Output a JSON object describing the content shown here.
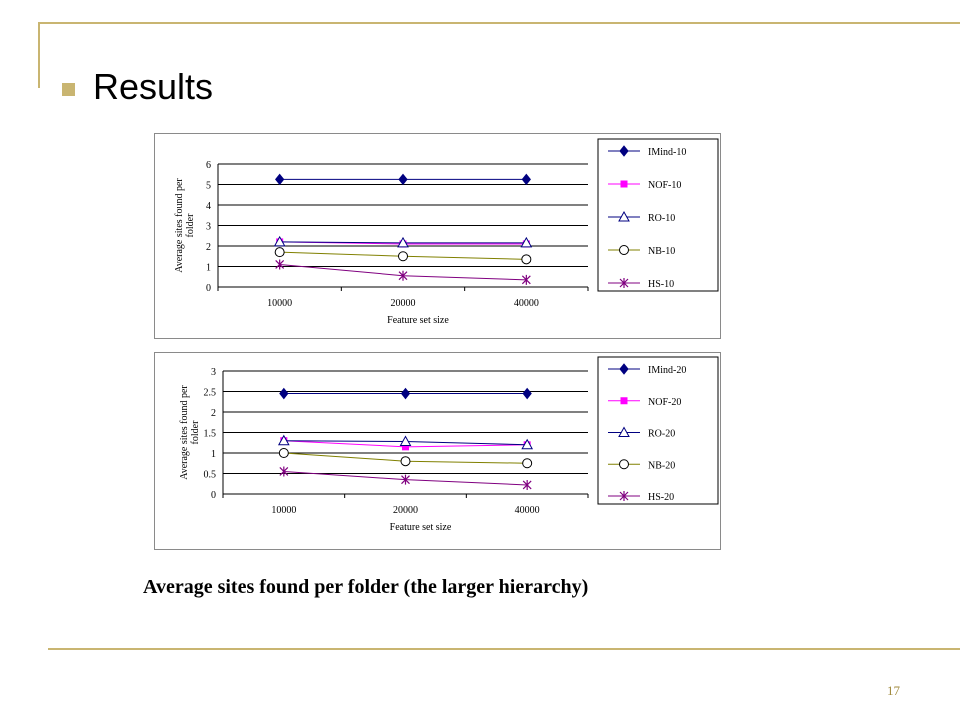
{
  "slide": {
    "title": "Results",
    "caption": "Average sites found per folder (the larger hierarchy)",
    "page_number": "17",
    "accent_color": "#c9b571"
  },
  "chart_data": [
    {
      "type": "line",
      "categories": [
        "10000",
        "20000",
        "40000"
      ],
      "xlabel": "Feature set size",
      "ylabel": "Average sites found per folder",
      "ylim": [
        0,
        6
      ],
      "yticks": [
        "0",
        "1",
        "2",
        "3",
        "4",
        "5",
        "6"
      ],
      "grid": true,
      "legend": "right",
      "series": [
        {
          "name": "IMind-10",
          "values": [
            5.25,
            5.25,
            5.25
          ],
          "color": "#000080",
          "marker": "diamond"
        },
        {
          "name": "NOF-10",
          "values": [
            2.2,
            2.1,
            2.1
          ],
          "color": "#ff00ff",
          "marker": "square"
        },
        {
          "name": "RO-10",
          "values": [
            2.2,
            2.15,
            2.15
          ],
          "color": "#000080",
          "marker": "triangle"
        },
        {
          "name": "NB-10",
          "values": [
            1.7,
            1.5,
            1.35
          ],
          "color": "#808000",
          "marker": "circle"
        },
        {
          "name": "HS-10",
          "values": [
            1.1,
            0.55,
            0.35
          ],
          "color": "#800080",
          "marker": "star"
        }
      ]
    },
    {
      "type": "line",
      "categories": [
        "10000",
        "20000",
        "40000"
      ],
      "xlabel": "Feature set size",
      "ylabel": "Average sites found per folder",
      "ylim": [
        0,
        3
      ],
      "yticks": [
        "0",
        "0.5",
        "1",
        "1.5",
        "2",
        "2.5",
        "3"
      ],
      "grid": true,
      "legend": "right",
      "series": [
        {
          "name": "IMind-20",
          "values": [
            2.45,
            2.45,
            2.45
          ],
          "color": "#000080",
          "marker": "diamond"
        },
        {
          "name": "NOF-20",
          "values": [
            1.3,
            1.15,
            1.2
          ],
          "color": "#ff00ff",
          "marker": "square"
        },
        {
          "name": "RO-20",
          "values": [
            1.3,
            1.28,
            1.2
          ],
          "color": "#000080",
          "marker": "triangle"
        },
        {
          "name": "NB-20",
          "values": [
            1.0,
            0.8,
            0.75
          ],
          "color": "#808000",
          "marker": "circle"
        },
        {
          "name": "HS-20",
          "values": [
            0.55,
            0.35,
            0.22
          ],
          "color": "#800080",
          "marker": "star"
        }
      ]
    }
  ]
}
